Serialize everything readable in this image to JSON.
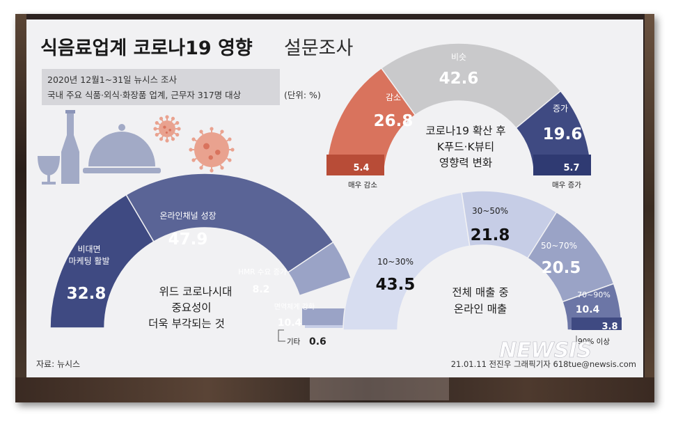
{
  "title": {
    "bold": "식음료업계 코로나19 영향",
    "light": "설문조사"
  },
  "survey": {
    "line1": "2020년 12월1~31일 뉴시스 조사",
    "line2": "국내 주요 식품·외식·화장품 업계, 근무자 317명 대상",
    "unit": "(단위: %)"
  },
  "source": "자료: 뉴시스",
  "credit": "21.01.11 전진우 그래픽기자 618tue@newsis.com",
  "watermark": "NEWSIS",
  "colors": {
    "navy": "#3f4a82",
    "mid": "#6c76a6",
    "light": "#9aa3c6",
    "pale": "#c6cde6",
    "palest": "#d7ddf0",
    "grey": "#c9c9cb",
    "coral": "#d9735d",
    "coralDark": "#b84c37"
  },
  "chart_data": [
    {
      "type": "pie",
      "title": "코로나19 확산 후 K푸드·K뷰티 영향력 변화",
      "categories": [
        "매우 감소",
        "감소",
        "비슷",
        "증가",
        "매우 증가"
      ],
      "values": [
        5.4,
        26.8,
        42.6,
        19.6,
        5.7
      ],
      "labels": {
        "increase_small": "매우 증가",
        "decrease_small": "매우 감소",
        "decrease": "감소",
        "same": "비슷",
        "increase": "증가"
      }
    },
    {
      "type": "pie",
      "title": "위드 코로나시대 중요성이 더욱 부각되는 것",
      "categories": [
        "비대면 마케팅 활발",
        "온라인채널 성장",
        "HMR 수요 증가",
        "면역체계 강화",
        "기타"
      ],
      "values": [
        32.8,
        47.9,
        8.2,
        10.4,
        0.6
      ],
      "labels": {
        "nonface1": "비대면",
        "nonface2": "마케팅 활발",
        "online": "온라인채널 성장",
        "hmr": "HMR 수요 증가",
        "immune": "면역체계 강화",
        "etc": "기타"
      }
    },
    {
      "type": "pie",
      "title": "전체 매출 중 온라인 매출",
      "categories": [
        "10~30%",
        "30~50%",
        "50~70%",
        "70~90%",
        "90% 이상"
      ],
      "values": [
        43.5,
        21.8,
        20.5,
        10.4,
        3.8
      ]
    }
  ]
}
